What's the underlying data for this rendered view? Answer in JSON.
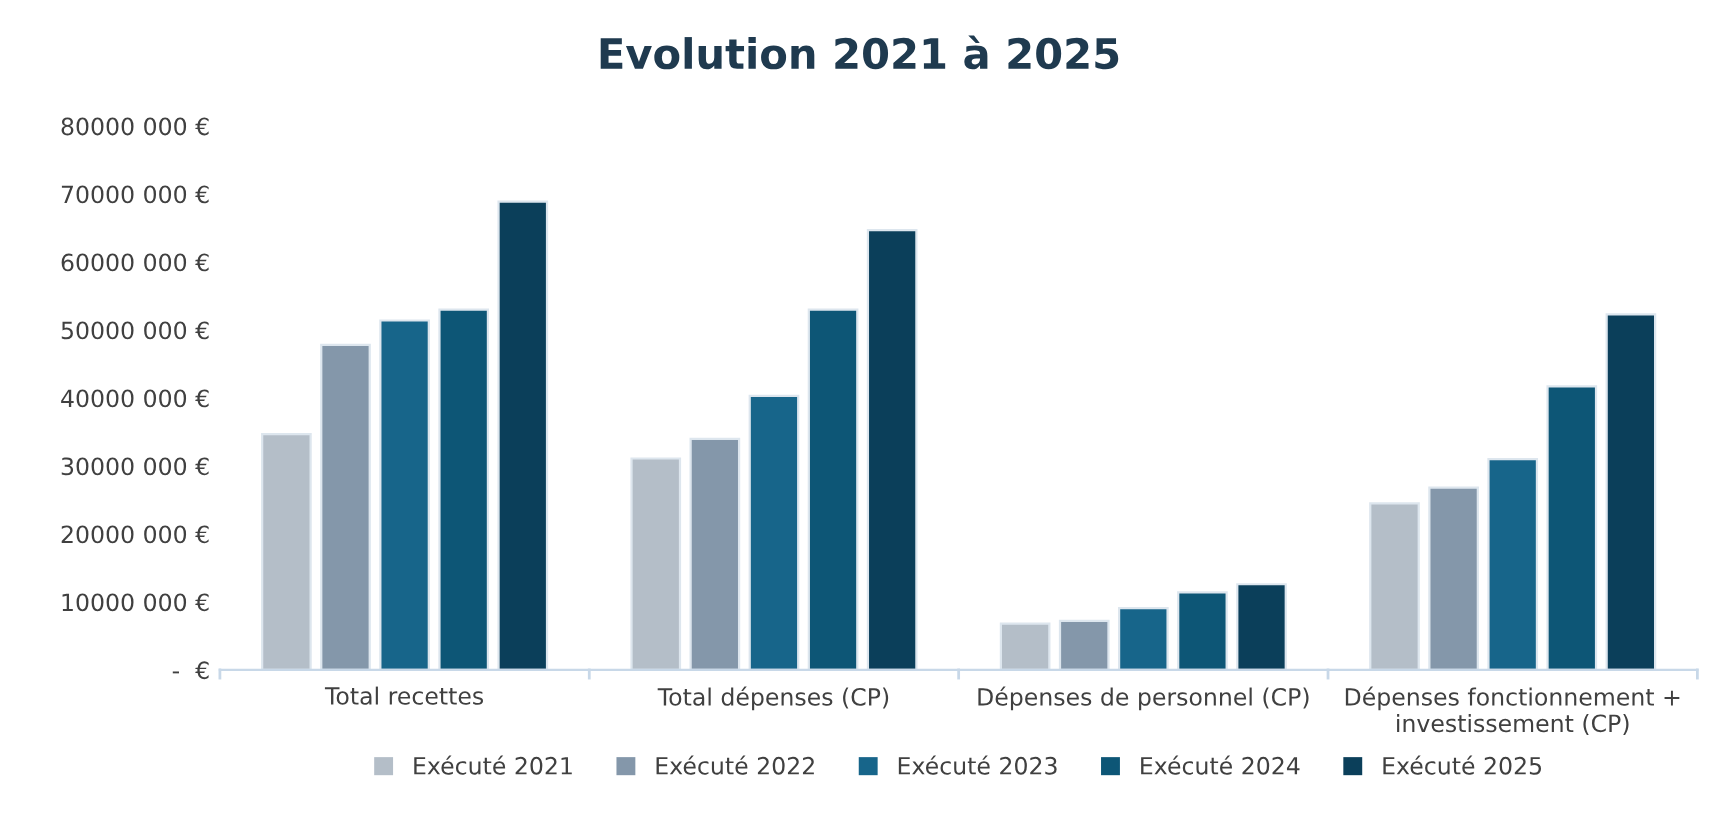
{
  "chart_data": {
    "type": "bar",
    "title": "Evolution 2021 à 2025",
    "categories": [
      "Total recettes",
      "Total dépenses (CP)",
      "Dépenses de personnel (CP)",
      "Dépenses fonctionnement +\ninvestissement (CP)"
    ],
    "series": [
      {
        "name": "Exécuté 2021",
        "color": "#b4bec8",
        "values": [
          34700000,
          31100000,
          6800000,
          24500000
        ]
      },
      {
        "name": "Exécuté 2022",
        "color": "#8497aa",
        "values": [
          47800000,
          34000000,
          7200000,
          26800000
        ]
      },
      {
        "name": "Exécuté 2023",
        "color": "#17658a",
        "values": [
          51400000,
          40300000,
          9100000,
          31000000
        ]
      },
      {
        "name": "Exécuté 2024",
        "color": "#0d5676",
        "values": [
          53000000,
          53000000,
          11400000,
          41700000
        ]
      },
      {
        "name": "Exécuté 2025",
        "color": "#0b3f5a",
        "values": [
          68900000,
          64700000,
          12600000,
          52300000
        ]
      }
    ],
    "ylim": [
      0,
      80000000
    ],
    "yticks": [
      {
        "value": 0,
        "label": "-  €"
      },
      {
        "value": 10000000,
        "label": "10000 000 €"
      },
      {
        "value": 20000000,
        "label": "20000 000 €"
      },
      {
        "value": 30000000,
        "label": "30000 000 €"
      },
      {
        "value": 40000000,
        "label": "40000 000 €"
      },
      {
        "value": 50000000,
        "label": "50000 000 €"
      },
      {
        "value": 60000000,
        "label": "60000 000 €"
      },
      {
        "value": 70000000,
        "label": "70000 000 €"
      },
      {
        "value": 80000000,
        "label": "80000 000 €"
      }
    ],
    "grid": false,
    "legend": "bottom"
  }
}
